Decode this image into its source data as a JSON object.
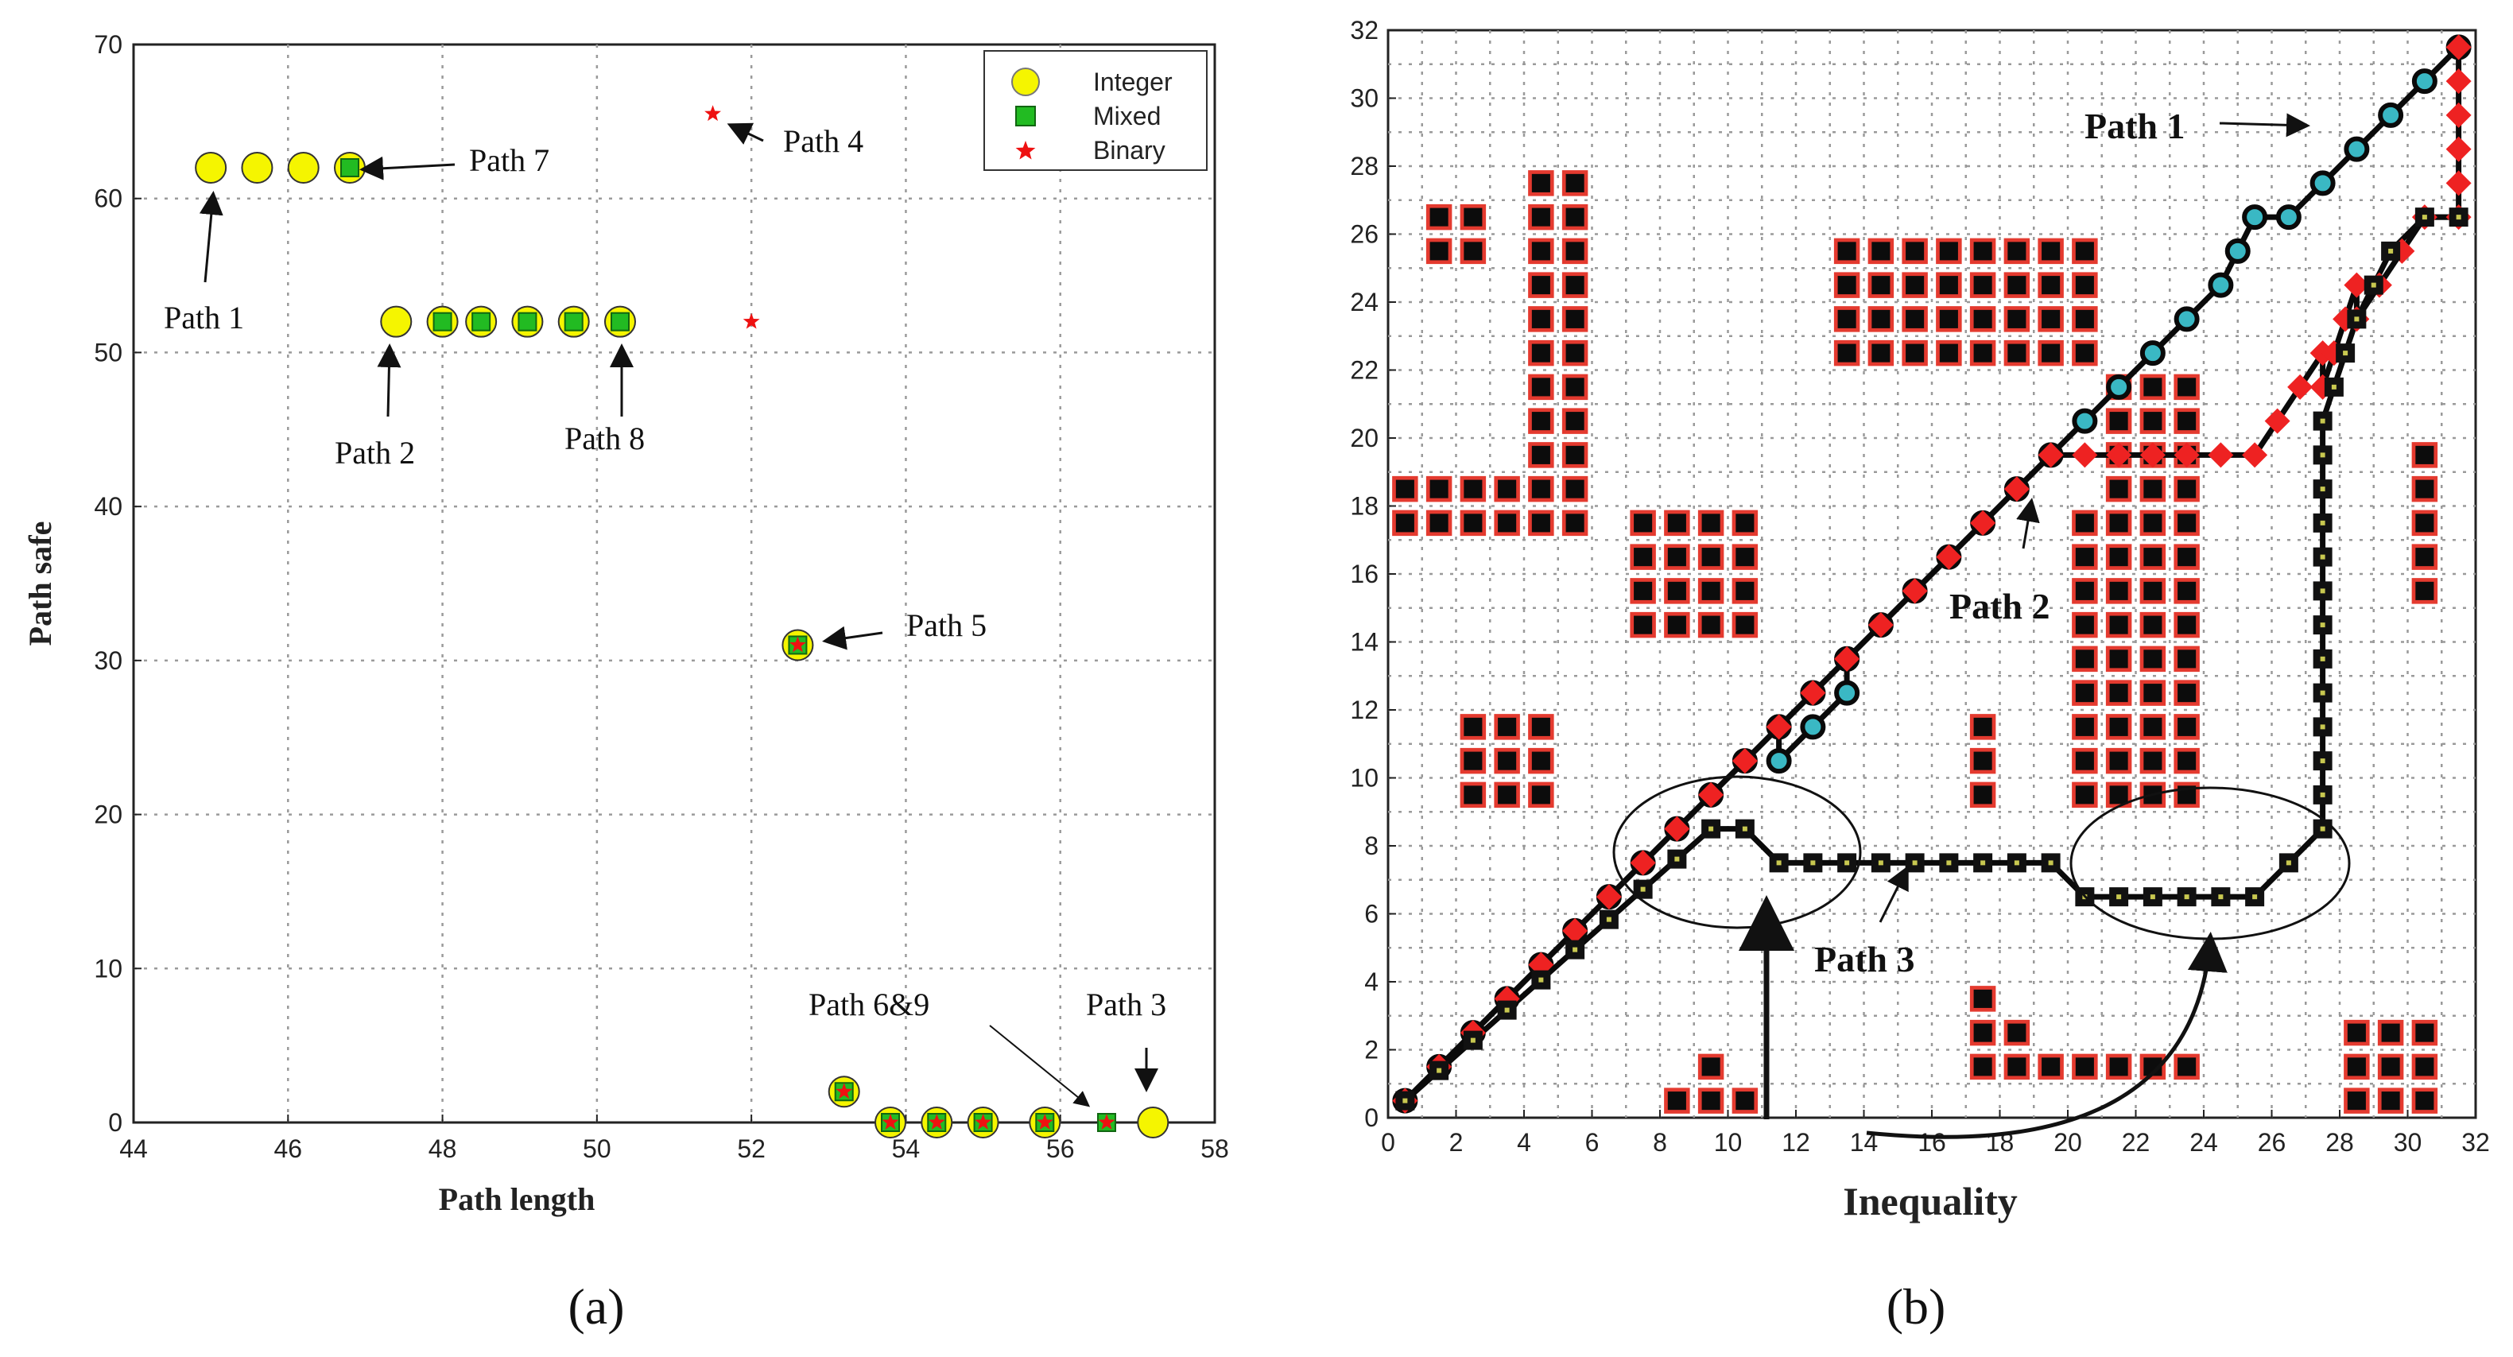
{
  "chart_data": [
    {
      "type": "scatter",
      "panel_label": "(a)",
      "xlabel": "Path length",
      "ylabel": "Path safe",
      "xlim": [
        44,
        58
      ],
      "ylim": [
        0,
        70
      ],
      "xticks": [
        "44",
        "46",
        "48",
        "50",
        "52",
        "54",
        "56",
        "58"
      ],
      "yticks": [
        "0",
        "10",
        "20",
        "30",
        "40",
        "50",
        "60",
        "70"
      ],
      "grid": true,
      "legend_position": "top-right",
      "legend": [
        "Integer",
        "Mixed",
        "Binary"
      ],
      "series": [
        {
          "name": "Integer",
          "marker": "circle",
          "color": "#f5f500",
          "points": [
            [
              45.0,
              62
            ],
            [
              45.6,
              62
            ],
            [
              46.2,
              62
            ],
            [
              46.8,
              62
            ],
            [
              47.4,
              52
            ],
            [
              48.0,
              52
            ],
            [
              48.5,
              52
            ],
            [
              49.1,
              52
            ],
            [
              49.7,
              52
            ],
            [
              50.3,
              52
            ],
            [
              52.6,
              31
            ],
            [
              53.2,
              2
            ],
            [
              53.8,
              0
            ],
            [
              54.4,
              0
            ],
            [
              55.0,
              0
            ],
            [
              55.8,
              0
            ],
            [
              57.2,
              0
            ]
          ]
        },
        {
          "name": "Mixed",
          "marker": "square",
          "color": "#22bb22",
          "points": [
            [
              46.8,
              62
            ],
            [
              48.0,
              52
            ],
            [
              48.5,
              52
            ],
            [
              49.1,
              52
            ],
            [
              49.7,
              52
            ],
            [
              50.3,
              52
            ],
            [
              52.6,
              31
            ],
            [
              53.2,
              2
            ],
            [
              53.8,
              0
            ],
            [
              54.4,
              0
            ],
            [
              55.0,
              0
            ],
            [
              55.8,
              0
            ],
            [
              56.6,
              0
            ]
          ]
        },
        {
          "name": "Binary",
          "marker": "star",
          "color": "#ee1111",
          "points": [
            [
              51.5,
              65.5
            ],
            [
              52.0,
              52
            ],
            [
              52.6,
              31
            ],
            [
              53.2,
              2
            ],
            [
              53.8,
              0
            ],
            [
              54.4,
              0
            ],
            [
              55.0,
              0
            ],
            [
              55.8,
              0
            ],
            [
              56.6,
              0
            ]
          ]
        }
      ],
      "annotations": [
        "Path 1",
        "Path 2",
        "Path 3",
        "Path 4",
        "Path 5",
        "Path 6&9",
        "Path 7",
        "Path 8"
      ]
    },
    {
      "type": "line",
      "panel_label": "(b)",
      "xlabel": "Inequality",
      "ylabel": "",
      "xlim": [
        0,
        32
      ],
      "ylim": [
        0,
        32
      ],
      "xticks": [
        "0",
        "2",
        "4",
        "6",
        "8",
        "10",
        "12",
        "14",
        "16",
        "18",
        "20",
        "22",
        "24",
        "26",
        "28",
        "30",
        "32"
      ],
      "yticks": [
        "0",
        "2",
        "4",
        "6",
        "8",
        "10",
        "12",
        "14",
        "16",
        "18",
        "20",
        "22",
        "24",
        "26",
        "28",
        "30",
        "32"
      ],
      "grid": true,
      "obstacles": [
        [
          1.5,
          25.5,
          2,
          2
        ],
        [
          0.5,
          17.5,
          6,
          2
        ],
        [
          4.5,
          19.5,
          2,
          9
        ],
        [
          7.5,
          14.5,
          4,
          4
        ],
        [
          2.5,
          9.5,
          3,
          3
        ],
        [
          13.5,
          22.5,
          8,
          4
        ],
        [
          21.5,
          18.5,
          3,
          4
        ],
        [
          20.5,
          9.5,
          4,
          9
        ],
        [
          30.5,
          15.5,
          1,
          5
        ],
        [
          17.5,
          9.5,
          1,
          3
        ],
        [
          17.5,
          1.5,
          7,
          1
        ],
        [
          17.5,
          2.5,
          1,
          2
        ],
        [
          18.5,
          2.5,
          1,
          1
        ],
        [
          9.5,
          0.5,
          1,
          2
        ],
        [
          8.5,
          0.5,
          1,
          1
        ],
        [
          10.5,
          0.5,
          1,
          1
        ],
        [
          28.5,
          0.5,
          3,
          3
        ]
      ],
      "series": [
        {
          "name": "Path 1",
          "marker": "circle",
          "color": "#3ab8c4",
          "points": [
            [
              0.5,
              0.5
            ],
            [
              13.5,
              13.5
            ],
            [
              13.5,
              12.5
            ],
            [
              11.5,
              10.5
            ],
            [
              11.5,
              11.5
            ],
            [
              24.5,
              24.5
            ],
            [
              25.5,
              26.5
            ],
            [
              26.5,
              26.5
            ],
            [
              31.5,
              31.5
            ]
          ]
        },
        {
          "name": "Path 2",
          "marker": "diamond",
          "color": "#ee2222",
          "points": [
            [
              0.5,
              0.5
            ],
            [
              19.5,
              19.5
            ],
            [
              25.5,
              19.5
            ],
            [
              27.5,
              22.5
            ],
            [
              27.5,
              21.5
            ],
            [
              28.5,
              24.5
            ],
            [
              28.5,
              23.5
            ],
            [
              30.5,
              26.5
            ],
            [
              31.5,
              26.5
            ],
            [
              31.5,
              31.5
            ]
          ]
        },
        {
          "name": "Path 3",
          "marker": "square",
          "color": "#111111",
          "points": [
            [
              0.5,
              0.5
            ],
            [
              9.5,
              8.5
            ],
            [
              10.5,
              8.5
            ],
            [
              11.5,
              7.5
            ],
            [
              19.5,
              7.5
            ],
            [
              20.5,
              6.5
            ],
            [
              25.5,
              6.5
            ],
            [
              26.5,
              7.5
            ],
            [
              27.5,
              8.5
            ],
            [
              27.5,
              19.5
            ],
            [
              27.5,
              20.5
            ],
            [
              28.5,
              23.5
            ],
            [
              29.5,
              25.5
            ],
            [
              30.5,
              26.5
            ],
            [
              31.5,
              26.5
            ]
          ]
        }
      ],
      "annotations": [
        "Path 1",
        "Path 2",
        "Path 3"
      ]
    }
  ]
}
